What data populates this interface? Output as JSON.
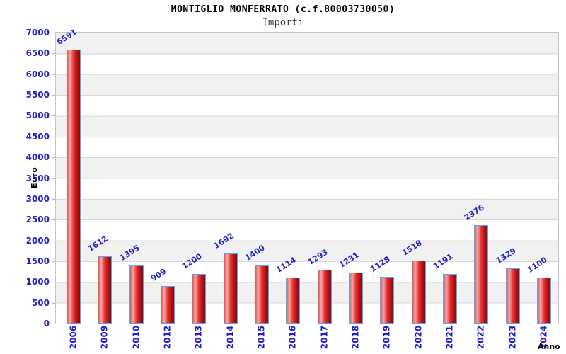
{
  "chart_data": {
    "type": "bar",
    "title": "MONTIGLIO MONFERRATO (c.f.80003730050)",
    "subtitle": "Importi",
    "xlabel": "Anno",
    "ylabel": "Euro",
    "categories": [
      "2006",
      "2009",
      "2010",
      "2012",
      "2013",
      "2014",
      "2015",
      "2016",
      "2017",
      "2018",
      "2019",
      "2020",
      "2021",
      "2022",
      "2023",
      "2024"
    ],
    "values": [
      6591,
      1612,
      1395,
      909,
      1200,
      1692,
      1400,
      1114,
      1293,
      1231,
      1128,
      1518,
      1191,
      2376,
      1329,
      1100
    ],
    "ylim": [
      0,
      7000
    ],
    "ytick_step": 500,
    "yticks": [
      0,
      500,
      1000,
      1500,
      2000,
      2500,
      3000,
      3500,
      4000,
      4500,
      5000,
      5500,
      6000,
      6500,
      7000
    ],
    "grid": "horizontal-bands",
    "legend_position": "none",
    "colors": {
      "bar_fill": "#ea3030",
      "bar_highlight": "#f5a8a8",
      "bar_shadow": "#8c0808",
      "bar_border": "#58a8e8",
      "value_label": "#2424c4",
      "tick_label": "#2222cc",
      "band": "#f1f1f1",
      "gridline": "#d8d8d8",
      "axis_title": "#000000"
    }
  }
}
